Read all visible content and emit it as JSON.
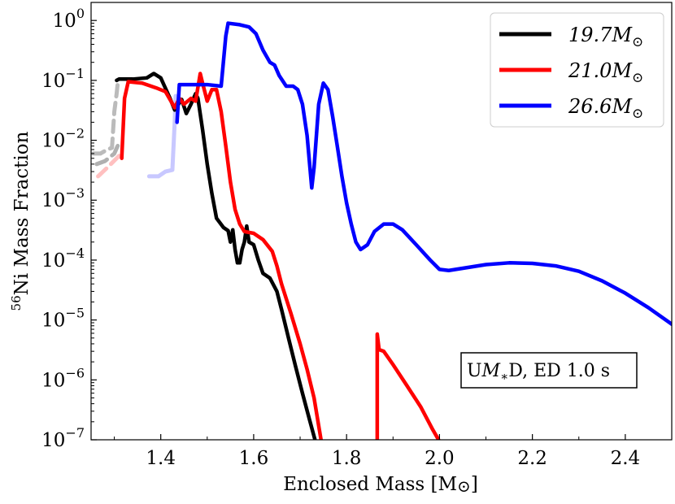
{
  "chart_data": {
    "type": "line",
    "ylog": true,
    "xlabel": "Enclosed Mass [M⊙]",
    "ylabel": "56Ni Mass Fraction",
    "ylabel_sup": "56",
    "ylabel_main": "Ni Mass Fraction",
    "xlabel_main": "Enclosed Mass [M",
    "xlabel_sun": "⊙",
    "xlabel_end": "]",
    "xlim": [
      1.25,
      2.5
    ],
    "ylim": [
      1e-07,
      2
    ],
    "xticks": [
      {
        "value": 1.4,
        "label": "1.4"
      },
      {
        "value": 1.6,
        "label": "1.6"
      },
      {
        "value": 1.8,
        "label": "1.8"
      },
      {
        "value": 2.0,
        "label": "2.0"
      },
      {
        "value": 2.2,
        "label": "2.2"
      },
      {
        "value": 2.4,
        "label": "2.4"
      }
    ],
    "yticks": [
      {
        "value": 1,
        "base": "10",
        "exp": "0"
      },
      {
        "value": 0.1,
        "base": "10",
        "exp": "−1"
      },
      {
        "value": 0.01,
        "base": "10",
        "exp": "−2"
      },
      {
        "value": 0.001,
        "base": "10",
        "exp": "−3"
      },
      {
        "value": 0.0001,
        "base": "10",
        "exp": "−4"
      },
      {
        "value": 1e-05,
        "base": "10",
        "exp": "−5"
      },
      {
        "value": 1e-06,
        "base": "10",
        "exp": "−6"
      },
      {
        "value": 1e-07,
        "base": "10",
        "exp": "−7"
      }
    ],
    "legend": {
      "position": "top-right",
      "entries": [
        {
          "label_main": "19.7M",
          "label_sub": "⊙",
          "color": "#000000"
        },
        {
          "label_main": "21.0M",
          "label_sub": "⊙",
          "color": "#ff0000"
        },
        {
          "label_main": "26.6M",
          "label_sub": "⊙",
          "color": "#0000ff"
        }
      ]
    },
    "annotation": {
      "text_pre": "U",
      "text_m": "M",
      "text_sub": "∗",
      "text_post": "D, ED 1.0 s",
      "position": "lower-right"
    },
    "series": [
      {
        "name": "19.7 Msun",
        "color": "#000000",
        "points": [
          [
            1.305,
            0.1
          ],
          [
            1.31,
            0.105
          ],
          [
            1.34,
            0.105
          ],
          [
            1.37,
            0.11
          ],
          [
            1.385,
            0.13
          ],
          [
            1.4,
            0.11
          ],
          [
            1.42,
            0.05
          ],
          [
            1.43,
            0.032
          ],
          [
            1.445,
            0.048
          ],
          [
            1.455,
            0.028
          ],
          [
            1.465,
            0.04
          ],
          [
            1.475,
            0.06
          ],
          [
            1.48,
            0.05
          ],
          [
            1.49,
            0.015
          ],
          [
            1.5,
            0.004
          ],
          [
            1.51,
            0.0013
          ],
          [
            1.52,
            0.0005
          ],
          [
            1.535,
            0.00035
          ],
          [
            1.545,
            0.00031
          ],
          [
            1.55,
            0.0002
          ],
          [
            1.555,
            0.00032
          ],
          [
            1.56,
            0.00015
          ],
          [
            1.565,
            9e-05
          ],
          [
            1.57,
            9e-05
          ],
          [
            1.575,
            0.00015
          ],
          [
            1.58,
            0.0002
          ],
          [
            1.585,
            0.00037
          ],
          [
            1.59,
            0.0002
          ],
          [
            1.6,
            0.00018
          ],
          [
            1.61,
            0.0001
          ],
          [
            1.62,
            6e-05
          ],
          [
            1.635,
            5e-05
          ],
          [
            1.65,
            3e-05
          ],
          [
            1.66,
            1.5e-05
          ],
          [
            1.675,
            5e-06
          ],
          [
            1.69,
            1.7e-06
          ],
          [
            1.705,
            6e-07
          ],
          [
            1.72,
            2.2e-07
          ],
          [
            1.732,
            1e-07
          ]
        ]
      },
      {
        "name": "21.0 Msun",
        "color": "#ff0000",
        "points": [
          [
            1.316,
            0.005
          ],
          [
            1.322,
            0.05
          ],
          [
            1.33,
            0.095
          ],
          [
            1.36,
            0.09
          ],
          [
            1.39,
            0.075
          ],
          [
            1.41,
            0.065
          ],
          [
            1.43,
            0.035
          ],
          [
            1.44,
            0.05
          ],
          [
            1.45,
            0.04
          ],
          [
            1.465,
            0.05
          ],
          [
            1.475,
            0.045
          ],
          [
            1.485,
            0.13
          ],
          [
            1.49,
            0.09
          ],
          [
            1.5,
            0.045
          ],
          [
            1.51,
            0.07
          ],
          [
            1.52,
            0.07
          ],
          [
            1.53,
            0.03
          ],
          [
            1.54,
            0.008
          ],
          [
            1.55,
            0.002
          ],
          [
            1.56,
            0.0007
          ],
          [
            1.57,
            0.0004
          ],
          [
            1.58,
            0.0003
          ],
          [
            1.6,
            0.00028
          ],
          [
            1.62,
            0.00022
          ],
          [
            1.64,
            0.00014
          ],
          [
            1.65,
            8e-05
          ],
          [
            1.66,
            4e-05
          ],
          [
            1.68,
            1.3e-05
          ],
          [
            1.7,
            4e-06
          ],
          [
            1.715,
            1.5e-06
          ],
          [
            1.73,
            5e-07
          ],
          [
            1.745,
            1e-07
          ]
        ]
      },
      {
        "name": "21.0 Msun outer",
        "color": "#ff0000",
        "points": [
          [
            1.866,
            1e-07
          ],
          [
            1.866,
            5.8e-06
          ],
          [
            1.87,
            3.2e-06
          ],
          [
            1.88,
            3e-06
          ],
          [
            1.9,
            1.8e-06
          ],
          [
            1.93,
            8e-07
          ],
          [
            1.96,
            3.5e-07
          ],
          [
            1.985,
            1.5e-07
          ],
          [
            1.998,
            1e-07
          ]
        ]
      },
      {
        "name": "26.6 Msun",
        "color": "#0000ff",
        "points": [
          [
            1.435,
            0.02
          ],
          [
            1.44,
            0.085
          ],
          [
            1.46,
            0.085
          ],
          [
            1.5,
            0.085
          ],
          [
            1.53,
            0.08
          ],
          [
            1.54,
            0.55
          ],
          [
            1.545,
            0.9
          ],
          [
            1.57,
            0.85
          ],
          [
            1.59,
            0.78
          ],
          [
            1.605,
            0.6
          ],
          [
            1.62,
            0.32
          ],
          [
            1.635,
            0.2
          ],
          [
            1.645,
            0.18
          ],
          [
            1.655,
            0.12
          ],
          [
            1.67,
            0.08
          ],
          [
            1.685,
            0.08
          ],
          [
            1.695,
            0.07
          ],
          [
            1.705,
            0.04
          ],
          [
            1.715,
            0.012
          ],
          [
            1.725,
            0.0016
          ],
          [
            1.73,
            0.0035
          ],
          [
            1.74,
            0.04
          ],
          [
            1.75,
            0.09
          ],
          [
            1.76,
            0.07
          ],
          [
            1.77,
            0.025
          ],
          [
            1.78,
            0.008
          ],
          [
            1.79,
            0.0025
          ],
          [
            1.8,
            0.0009
          ],
          [
            1.81,
            0.0004
          ],
          [
            1.82,
            0.0002
          ],
          [
            1.83,
            0.00015
          ],
          [
            1.845,
            0.00018
          ],
          [
            1.86,
            0.0003
          ],
          [
            1.88,
            0.0004
          ],
          [
            1.9,
            0.0004
          ],
          [
            1.92,
            0.00032
          ],
          [
            1.95,
            0.00018
          ],
          [
            1.98,
            0.0001
          ],
          [
            2.0,
            7e-05
          ],
          [
            2.02,
            6.7e-05
          ],
          [
            2.06,
            7.5e-05
          ],
          [
            2.1,
            8.4e-05
          ],
          [
            2.15,
            9e-05
          ],
          [
            2.2,
            8.8e-05
          ],
          [
            2.25,
            8e-05
          ],
          [
            2.3,
            6.5e-05
          ],
          [
            2.35,
            4.5e-05
          ],
          [
            2.4,
            2.8e-05
          ],
          [
            2.45,
            1.6e-05
          ],
          [
            2.5,
            8.5e-06
          ]
        ]
      },
      {
        "name": "19.7 Msun faded",
        "color": "#bbbbbb",
        "dashed": true,
        "points": [
          [
            1.255,
            0.006
          ],
          [
            1.27,
            0.006
          ],
          [
            1.285,
            0.007
          ],
          [
            1.295,
            0.0075
          ],
          [
            1.3,
            0.03
          ],
          [
            1.305,
            0.06
          ],
          [
            1.308,
            0.1
          ]
        ]
      },
      {
        "name": "19.7 Msun faded lower",
        "color": "#b0b0b0",
        "dashed": true,
        "points": [
          [
            1.262,
            0.004
          ],
          [
            1.28,
            0.0045
          ],
          [
            1.3,
            0.006
          ],
          [
            1.31,
            0.009
          ]
        ]
      },
      {
        "name": "21.0 Msun faded",
        "color": "#ffc0c0",
        "dashed": true,
        "points": [
          [
            1.265,
            0.0025
          ],
          [
            1.285,
            0.0035
          ],
          [
            1.305,
            0.005
          ],
          [
            1.315,
            0.006
          ]
        ]
      },
      {
        "name": "26.6 Msun faded",
        "color": "#c8c8ff",
        "dashed": false,
        "points": [
          [
            1.375,
            0.0025
          ],
          [
            1.395,
            0.0025
          ],
          [
            1.41,
            0.003
          ],
          [
            1.425,
            0.0032
          ],
          [
            1.43,
            0.02
          ],
          [
            1.432,
            0.055
          ]
        ]
      }
    ]
  }
}
